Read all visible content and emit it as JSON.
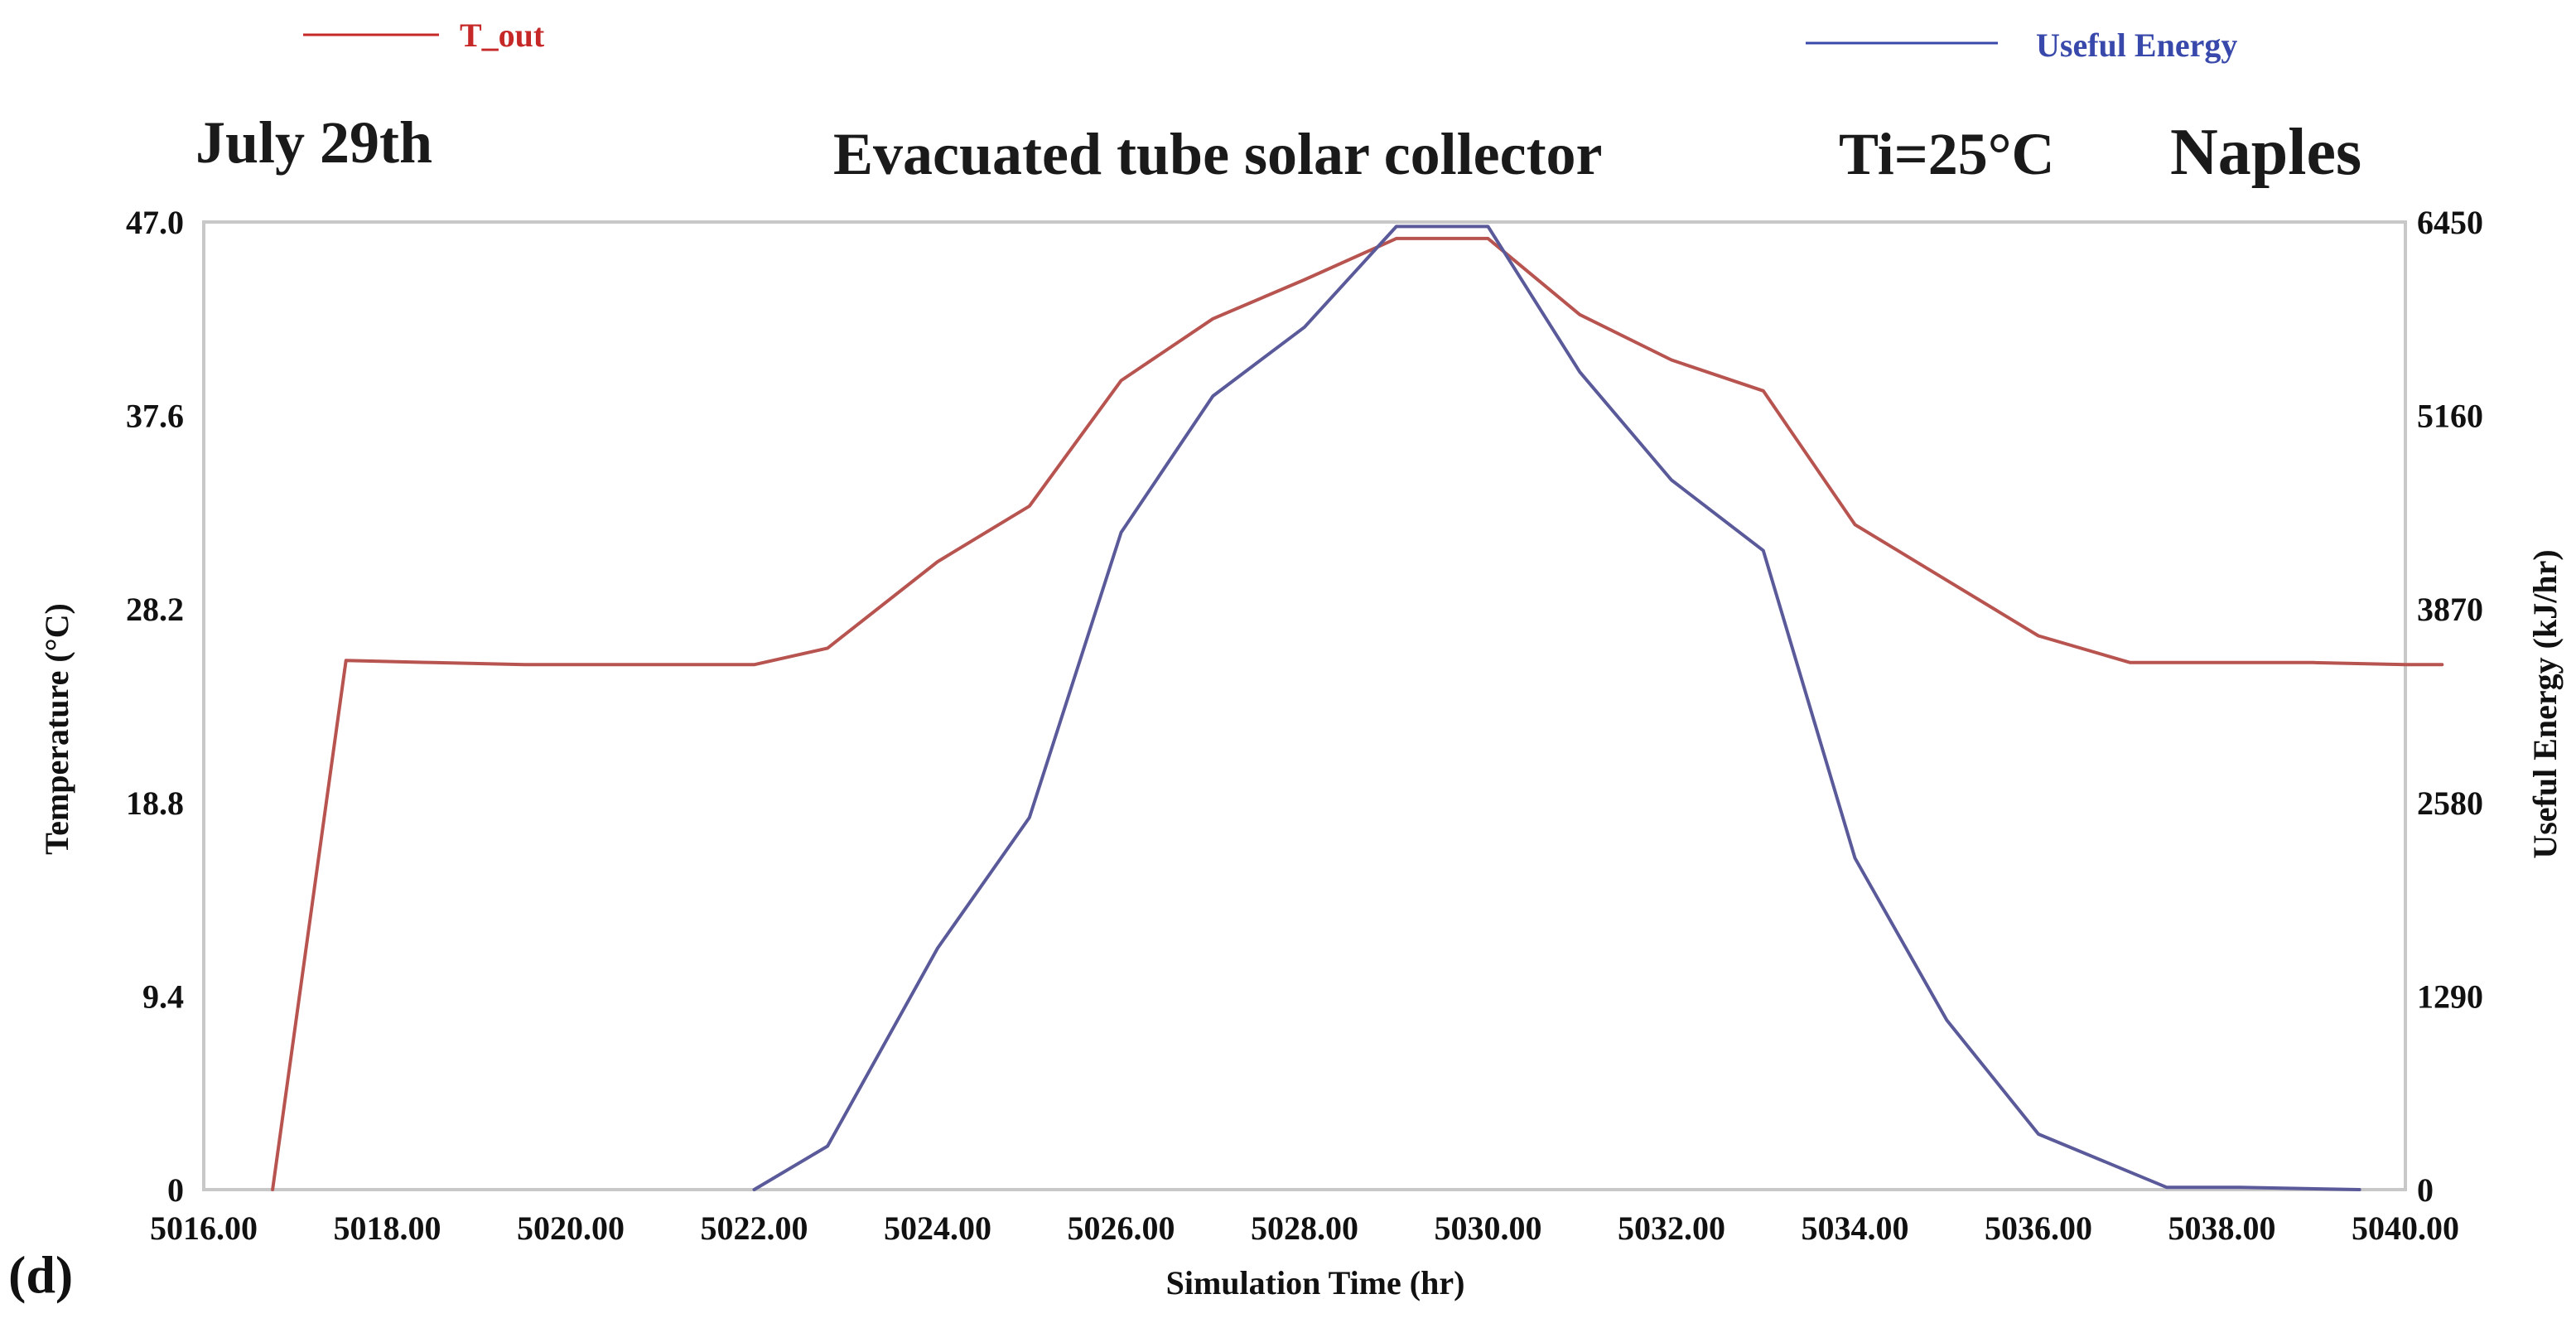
{
  "chart_data": {
    "type": "line",
    "panel_label": "(d)",
    "date_label": "July 29th",
    "title": "Evacuated tube solar collector",
    "inlet_temp": "Ti=25°C",
    "location": "Naples",
    "xlabel": "Simulation Time (hr)",
    "ylabel_left": "Temperature (°C)",
    "ylabel_right": "Useful Energy (kJ/hr)",
    "x_range": [
      5016,
      5040
    ],
    "y_left_range": [
      0,
      47
    ],
    "y_right_range": [
      0,
      6450
    ],
    "x_ticks": [
      {
        "value": 5016,
        "label": "5016.00"
      },
      {
        "value": 5018,
        "label": "5018.00"
      },
      {
        "value": 5020,
        "label": "5020.00"
      },
      {
        "value": 5022,
        "label": "5022.00"
      },
      {
        "value": 5024,
        "label": "5024.00"
      },
      {
        "value": 5026,
        "label": "5026.00"
      },
      {
        "value": 5028,
        "label": "5028.00"
      },
      {
        "value": 5030,
        "label": "5030.00"
      },
      {
        "value": 5032,
        "label": "5032.00"
      },
      {
        "value": 5034,
        "label": "5034.00"
      },
      {
        "value": 5036,
        "label": "5036.00"
      },
      {
        "value": 5038,
        "label": "5038.00"
      },
      {
        "value": 5040,
        "label": "5040.00"
      }
    ],
    "y_left_ticks": [
      {
        "value": 0,
        "label": "0"
      },
      {
        "value": 9.4,
        "label": "9.4"
      },
      {
        "value": 18.8,
        "label": "18.8"
      },
      {
        "value": 28.2,
        "label": "28.2"
      },
      {
        "value": 37.6,
        "label": "37.6"
      },
      {
        "value": 47.0,
        "label": "47.0"
      }
    ],
    "y_right_ticks": [
      {
        "value": 0,
        "label": "0"
      },
      {
        "value": 1290,
        "label": "1290"
      },
      {
        "value": 2580,
        "label": "2580"
      },
      {
        "value": 3870,
        "label": "3870"
      },
      {
        "value": 5160,
        "label": "5160"
      },
      {
        "value": 6450,
        "label": "6450"
      }
    ],
    "series": [
      {
        "name": "T_out",
        "axis": "left",
        "color": "#b85450",
        "legend_color": "#c62828",
        "x": [
          5016.75,
          5017.55,
          5018.5,
          5019.5,
          5020.5,
          5021.5,
          5022.0,
          5022.8,
          5024.0,
          5025.0,
          5026.0,
          5027.0,
          5028.0,
          5029.0,
          5029.5,
          5030.0,
          5031.0,
          5032.0,
          5033.0,
          5034.0,
          5035.0,
          5036.0,
          5037.0,
          5038.0,
          5039.0,
          5040.0,
          5040.4
        ],
        "values": [
          0,
          25.7,
          25.6,
          25.5,
          25.5,
          25.5,
          25.5,
          26.3,
          30.5,
          33.2,
          39.3,
          42.3,
          44.2,
          46.2,
          46.2,
          46.2,
          42.5,
          40.3,
          38.8,
          32.3,
          29.6,
          26.9,
          25.6,
          25.6,
          25.6,
          25.5,
          25.5
        ]
      },
      {
        "name": "Useful Energy",
        "axis": "right",
        "color": "#5a5a9a",
        "legend_color": "#3949ab",
        "x": [
          5022.0,
          5022.8,
          5024.0,
          5025.0,
          5026.0,
          5027.0,
          5028.0,
          5029.0,
          5029.5,
          5030.0,
          5031.0,
          5032.0,
          5033.0,
          5034.0,
          5035.0,
          5036.0,
          5037.4,
          5038.2,
          5039.5
        ],
        "values": [
          0,
          290,
          1610,
          2480,
          4380,
          5290,
          5750,
          6420,
          6420,
          6420,
          5450,
          4730,
          4260,
          2210,
          1130,
          370,
          15,
          15,
          0
        ]
      }
    ]
  }
}
